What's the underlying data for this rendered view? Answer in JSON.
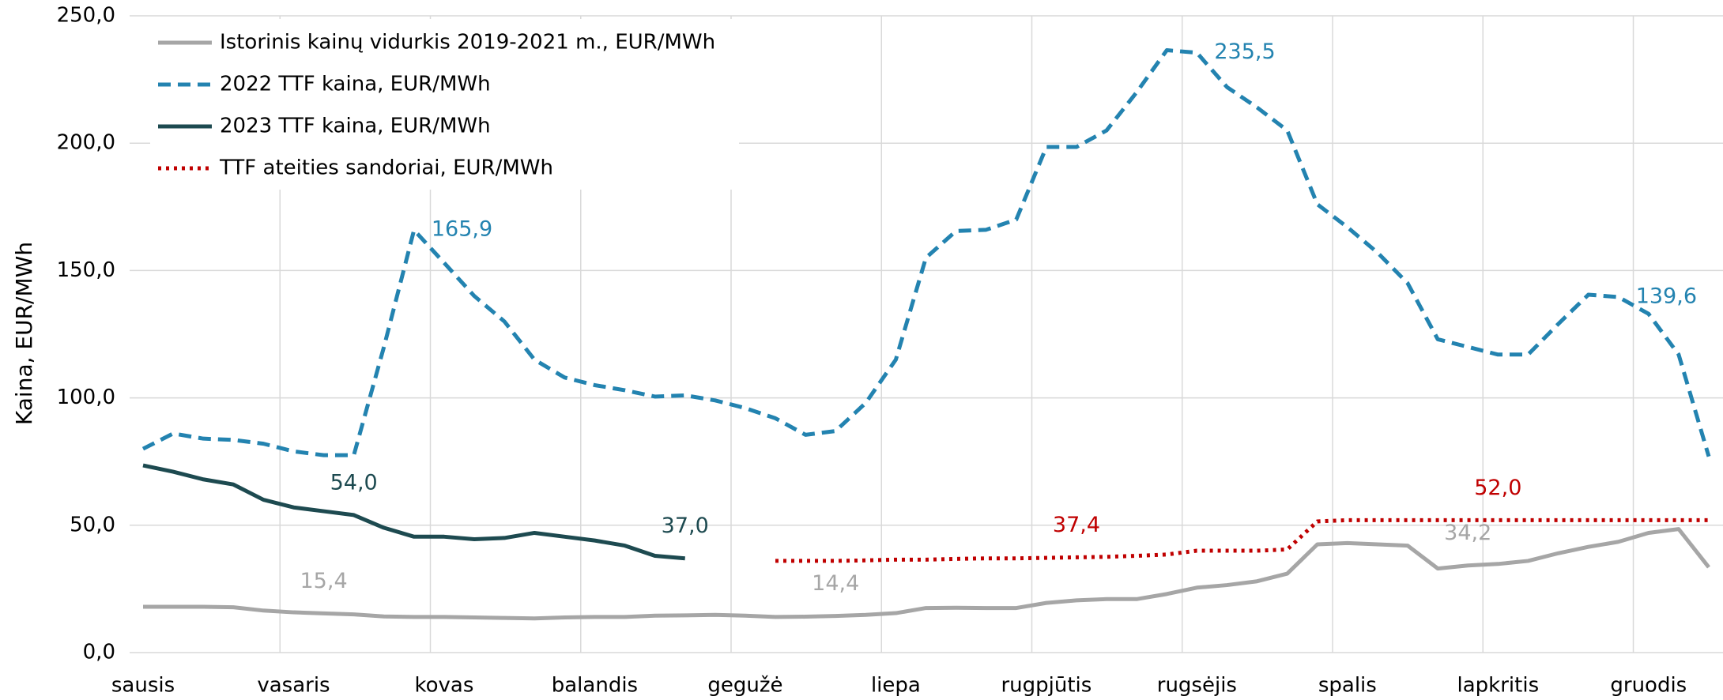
{
  "chart_data": {
    "type": "line",
    "y_label": "Kaina, EUR/MWh",
    "categories": [
      "sausis",
      null,
      null,
      null,
      null,
      "vasaris",
      null,
      null,
      null,
      null,
      "kovas",
      null,
      null,
      null,
      null,
      "balandis",
      null,
      null,
      null,
      null,
      "gegužė",
      null,
      null,
      null,
      null,
      "liepa",
      null,
      null,
      null,
      null,
      "rugpjūtis",
      null,
      null,
      null,
      null,
      "rugsėjis",
      null,
      null,
      null,
      null,
      "spalis",
      null,
      null,
      null,
      null,
      "lapkritis",
      null,
      null,
      null,
      null,
      "gruodis",
      null,
      null
    ],
    "ylim": [
      0,
      250
    ],
    "yticks": [
      {
        "value": 0,
        "label": "0,0"
      },
      {
        "value": 50,
        "label": "50,0"
      },
      {
        "value": 100,
        "label": "100,0"
      },
      {
        "value": 150,
        "label": "150,0"
      },
      {
        "value": 200,
        "label": "200,0"
      },
      {
        "value": 250,
        "label": "250,0"
      }
    ],
    "grid": true,
    "legend": "top-left",
    "series": [
      {
        "name": "Istorinis kainų vidurkis 2019-2021 m., EUR/MWh",
        "color": "#a6a6a6",
        "style": "solid",
        "values": [
          18,
          18,
          18,
          17.8,
          16.5,
          15.8,
          15.4,
          15,
          14.2,
          14,
          14,
          13.8,
          13.6,
          13.4,
          13.8,
          14,
          14,
          14.5,
          14.6,
          14.8,
          14.5,
          14,
          14.1,
          14.4,
          14.8,
          15.5,
          17.5,
          17.6,
          17.5,
          17.5,
          19.5,
          20.5,
          21,
          21,
          23,
          25.5,
          26.5,
          28,
          31,
          42.5,
          43,
          42.5,
          42,
          33,
          34.2,
          34.8,
          36,
          39,
          41.5,
          43.5,
          47,
          48.5,
          33.5
        ],
        "value_labels": [
          null,
          null,
          null,
          null,
          null,
          null,
          "15,4",
          null,
          null,
          null,
          null,
          null,
          null,
          null,
          null,
          null,
          null,
          null,
          null,
          null,
          null,
          null,
          null,
          "14,4",
          null,
          null,
          null,
          null,
          null,
          null,
          null,
          null,
          null,
          null,
          null,
          null,
          null,
          null,
          null,
          null,
          null,
          null,
          null,
          null,
          "34,2",
          null,
          null,
          null,
          null,
          null,
          null,
          null,
          null
        ]
      },
      {
        "name": "2022 TTF kaina, EUR/MWh",
        "color": "#2383b0",
        "style": "dashed",
        "values": [
          80,
          86,
          84,
          83.5,
          82,
          79,
          77.5,
          77.5,
          120,
          165.9,
          153,
          140,
          130,
          115,
          108,
          105,
          103,
          100.5,
          101,
          99,
          96,
          92,
          85.5,
          87,
          98,
          115,
          155,
          165.5,
          166,
          170,
          198.5,
          198.5,
          205,
          220,
          236.5,
          235.5,
          222,
          214,
          205,
          176,
          167,
          157,
          145,
          123,
          120,
          117,
          117,
          129,
          140.5,
          139.6,
          133,
          117,
          77
        ],
        "value_labels": [
          null,
          null,
          null,
          null,
          null,
          null,
          null,
          null,
          null,
          "165,9",
          null,
          null,
          null,
          null,
          null,
          null,
          null,
          null,
          null,
          null,
          null,
          null,
          null,
          null,
          null,
          null,
          null,
          null,
          null,
          null,
          null,
          null,
          null,
          null,
          null,
          "235,5",
          null,
          null,
          null,
          null,
          null,
          null,
          null,
          null,
          null,
          null,
          null,
          null,
          null,
          "139,6",
          null,
          null,
          null
        ]
      },
      {
        "name": "2023 TTF kaina, EUR/MWh",
        "color": "#1d4a50",
        "style": "solid",
        "values": [
          73.5,
          71,
          68,
          66,
          60,
          57,
          55.5,
          54,
          49,
          45.5,
          45.5,
          44.5,
          45,
          47,
          45.5,
          44,
          42,
          38,
          37,
          null,
          null,
          null,
          null,
          null,
          null,
          null,
          null,
          null,
          null,
          null,
          null,
          null,
          null,
          null,
          null,
          null,
          null,
          null,
          null,
          null,
          null,
          null,
          null,
          null,
          null,
          null,
          null,
          null,
          null,
          null,
          null,
          null,
          null
        ],
        "value_labels": [
          null,
          null,
          null,
          null,
          null,
          null,
          null,
          "54,0",
          null,
          null,
          null,
          null,
          null,
          null,
          null,
          null,
          null,
          null,
          "37,0",
          null,
          null,
          null,
          null,
          null,
          null,
          null,
          null,
          null,
          null,
          null,
          null,
          null,
          null,
          null,
          null,
          null,
          null,
          null,
          null,
          null,
          null,
          null,
          null,
          null,
          null,
          null,
          null,
          null,
          null,
          null,
          null,
          null,
          null
        ]
      },
      {
        "name": "TTF ateities sandoriai, EUR/MWh",
        "color": "#c00000",
        "style": "dotted",
        "values": [
          null,
          null,
          null,
          null,
          null,
          null,
          null,
          null,
          null,
          null,
          null,
          null,
          null,
          null,
          null,
          null,
          null,
          null,
          null,
          null,
          null,
          36,
          36,
          36,
          36.2,
          36.5,
          36.5,
          36.8,
          37,
          37,
          37.2,
          37.4,
          37.6,
          38,
          38.5,
          40,
          40,
          40,
          40.5,
          51.5,
          52,
          52,
          52,
          52,
          52,
          52,
          52,
          52,
          52,
          52,
          52,
          52,
          52
        ],
        "value_labels": [
          null,
          null,
          null,
          null,
          null,
          null,
          null,
          null,
          null,
          null,
          null,
          null,
          null,
          null,
          null,
          null,
          null,
          null,
          null,
          null,
          null,
          null,
          null,
          null,
          null,
          null,
          null,
          null,
          null,
          null,
          null,
          "37,4",
          null,
          null,
          null,
          null,
          null,
          null,
          null,
          null,
          null,
          null,
          null,
          null,
          null,
          "52,0",
          null,
          null,
          null,
          null,
          null,
          null,
          null
        ]
      }
    ]
  }
}
